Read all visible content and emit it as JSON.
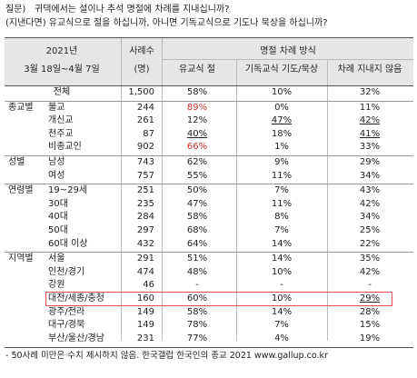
{
  "question": {
    "label": "질문)",
    "line1": "귀댁에서는 설이나 추석 명절에 차례를 지내십니까?",
    "line2": "(지낸다면) 유교식으로 절을 하십니까, 아니면 기독교식으로 기도나 묵상을 하십니까?"
  },
  "header": {
    "period_year": "2021년",
    "period_range": "3월 18일~4월 7일",
    "n_label": "사례수",
    "n_unit": "(명)",
    "group_title": "명절 차례 방식",
    "columns": [
      "유교식 절",
      "기독교식 기도/묵상",
      "차례 지내지 않음"
    ]
  },
  "total": {
    "label": "전체",
    "n": "1,500",
    "cells": [
      "58%",
      "10%",
      "32%"
    ]
  },
  "groups": [
    {
      "name": "종교별",
      "rows": [
        {
          "label": "불교",
          "n": "244",
          "cells": [
            "89%",
            "0%",
            "11%"
          ],
          "red": [
            0
          ]
        },
        {
          "label": "개신교",
          "n": "261",
          "cells": [
            "12%",
            "47%",
            "42%"
          ],
          "underline": [
            1,
            2
          ]
        },
        {
          "label": "천주교",
          "n": "87",
          "cells": [
            "40%",
            "18%",
            "41%"
          ],
          "underline": [
            0,
            2
          ]
        },
        {
          "label": "비종교인",
          "n": "902",
          "cells": [
            "66%",
            "1%",
            "33%"
          ],
          "red": [
            0
          ]
        }
      ]
    },
    {
      "name": "성별",
      "rows": [
        {
          "label": "남성",
          "n": "743",
          "cells": [
            "62%",
            "9%",
            "29%"
          ]
        },
        {
          "label": "여성",
          "n": "757",
          "cells": [
            "55%",
            "11%",
            "34%"
          ]
        }
      ]
    },
    {
      "name": "연령별",
      "rows": [
        {
          "label": "19~29세",
          "n": "251",
          "cells": [
            "50%",
            "7%",
            "43%"
          ]
        },
        {
          "label": "30대",
          "n": "235",
          "cells": [
            "47%",
            "11%",
            "42%"
          ]
        },
        {
          "label": "40대",
          "n": "284",
          "cells": [
            "58%",
            "8%",
            "34%"
          ]
        },
        {
          "label": "50대",
          "n": "297",
          "cells": [
            "68%",
            "7%",
            "25%"
          ]
        },
        {
          "label": "60대 이상",
          "n": "432",
          "cells": [
            "64%",
            "14%",
            "22%"
          ]
        }
      ]
    },
    {
      "name": "지역별",
      "rows": [
        {
          "label": "서울",
          "n": "291",
          "cells": [
            "51%",
            "14%",
            "35%"
          ]
        },
        {
          "label": "인천/경기",
          "n": "474",
          "cells": [
            "48%",
            "10%",
            "42%"
          ]
        },
        {
          "label": "강원",
          "n": "46",
          "cells": [
            "-",
            "-",
            "-"
          ]
        },
        {
          "label": "대전/세종/충청",
          "n": "160",
          "cells": [
            "60%",
            "10%",
            "29%"
          ],
          "underline": [
            2
          ],
          "boxed": true
        },
        {
          "label": "광주/전라",
          "n": "149",
          "cells": [
            "58%",
            "14%",
            "28%"
          ]
        },
        {
          "label": "대구/경북",
          "n": "149",
          "cells": [
            "78%",
            "7%",
            "15%"
          ]
        },
        {
          "label": "부산/울산/경남",
          "n": "231",
          "cells": [
            "77%",
            "4%",
            "19%"
          ]
        }
      ]
    }
  ],
  "footnote": "- 50사례 미만은 수치 제시하지 않음. 한국갤럽 한국인의 종교 2021 www.gallup.co.kr"
}
